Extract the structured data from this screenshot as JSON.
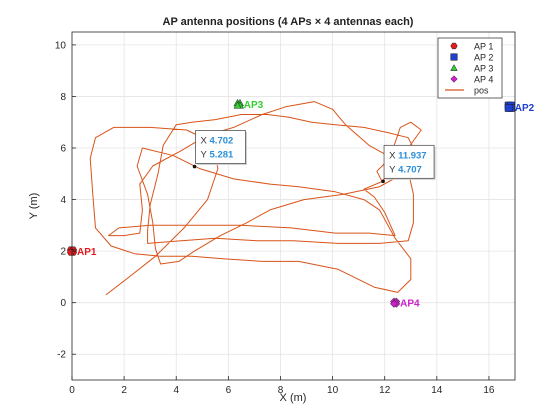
{
  "chart_data": {
    "type": "scatter",
    "title": "AP antenna positions (4 APs × 4 antennas each)",
    "xlabel": "X (m)",
    "ylabel": "Y (m)",
    "xlim": [
      0,
      17
    ],
    "ylim": [
      -3,
      10.5
    ],
    "xticks": [
      "0",
      "2",
      "4",
      "6",
      "8",
      "10",
      "12",
      "14",
      "16"
    ],
    "yticks": [
      "-2",
      "0",
      "2",
      "4",
      "6",
      "8",
      "10"
    ],
    "grid": true,
    "legend_position": "top-right",
    "legend": [
      {
        "label": "AP 1",
        "marker": "hexagon",
        "color": "#e41a1c"
      },
      {
        "label": "AP 2",
        "marker": "square",
        "color": "#1f3fd0"
      },
      {
        "label": "AP 3",
        "marker": "triangle",
        "color": "#33cc33"
      },
      {
        "label": "AP 4",
        "marker": "diamond",
        "color": "#cc22cc"
      },
      {
        "label": "pos",
        "marker": "line",
        "color": "#d95319"
      }
    ],
    "aps": [
      {
        "label": "AP1",
        "x": 0.0,
        "y": 2.0,
        "color": "#e41a1c",
        "marker": "hexagon"
      },
      {
        "label": "AP2",
        "x": 16.8,
        "y": 7.6,
        "color": "#1f3fd0",
        "marker": "square"
      },
      {
        "label": "AP3",
        "x": 6.4,
        "y": 7.7,
        "color": "#33cc33",
        "marker": "triangle"
      },
      {
        "label": "AP4",
        "x": 12.4,
        "y": 0.0,
        "color": "#cc22cc",
        "marker": "diamond"
      }
    ],
    "path": {
      "color": "#d95319",
      "points": [
        [
          1.3,
          0.3
        ],
        [
          2.2,
          1.0
        ],
        [
          3.2,
          1.8
        ],
        [
          4.3,
          2.9
        ],
        [
          5.2,
          4.0
        ],
        [
          5.6,
          5.2
        ],
        [
          5.4,
          6.2
        ],
        [
          4.4,
          6.7
        ],
        [
          3.0,
          6.8
        ],
        [
          1.6,
          6.8
        ],
        [
          0.9,
          6.4
        ],
        [
          0.7,
          5.6
        ],
        [
          0.8,
          4.2
        ],
        [
          0.9,
          2.9
        ],
        [
          1.5,
          2.2
        ],
        [
          2.4,
          1.9
        ],
        [
          3.4,
          1.8
        ],
        [
          4.6,
          1.8
        ],
        [
          5.8,
          1.7
        ],
        [
          7.3,
          1.6
        ],
        [
          8.7,
          1.6
        ],
        [
          10.2,
          1.3
        ],
        [
          11.6,
          0.6
        ],
        [
          12.5,
          0.4
        ],
        [
          13.0,
          0.9
        ],
        [
          13.0,
          1.7
        ],
        [
          12.4,
          2.5
        ],
        [
          11.8,
          3.6
        ],
        [
          11.2,
          4.0
        ],
        [
          10.1,
          4.3
        ],
        [
          8.7,
          4.5
        ],
        [
          7.6,
          4.6
        ],
        [
          6.2,
          4.8
        ],
        [
          4.9,
          5.2
        ],
        [
          3.9,
          5.7
        ],
        [
          2.7,
          6.0
        ],
        [
          2.5,
          5.3
        ],
        [
          2.9,
          4.2
        ],
        [
          3.1,
          3.1
        ],
        [
          3.2,
          2.1
        ],
        [
          3.4,
          1.5
        ],
        [
          4.1,
          1.6
        ],
        [
          4.7,
          2.0
        ],
        [
          5.7,
          2.6
        ],
        [
          6.7,
          3.1
        ],
        [
          7.6,
          3.6
        ],
        [
          8.9,
          4.0
        ],
        [
          10.4,
          4.2
        ],
        [
          11.8,
          4.5
        ],
        [
          12.7,
          5.0
        ],
        [
          13.2,
          5.8
        ],
        [
          12.9,
          6.4
        ],
        [
          12.1,
          6.6
        ],
        [
          11.2,
          6.8
        ],
        [
          10.1,
          6.9
        ],
        [
          9.2,
          7.0
        ],
        [
          8.3,
          7.2
        ],
        [
          7.5,
          7.3
        ],
        [
          6.5,
          7.3
        ],
        [
          5.5,
          7.1
        ],
        [
          4.6,
          7.0
        ],
        [
          4.0,
          6.9
        ],
        [
          3.5,
          6.1
        ],
        [
          3.3,
          5.0
        ],
        [
          3.0,
          3.8
        ],
        [
          2.9,
          2.8
        ],
        [
          2.9,
          2.3
        ],
        [
          4.2,
          2.4
        ],
        [
          5.5,
          2.5
        ],
        [
          7.1,
          2.4
        ],
        [
          8.5,
          2.4
        ],
        [
          10.2,
          2.3
        ],
        [
          11.8,
          2.3
        ],
        [
          12.9,
          2.4
        ],
        [
          13.1,
          3.1
        ],
        [
          13.1,
          4.2
        ],
        [
          12.9,
          5.1
        ],
        [
          12.3,
          5.6
        ],
        [
          11.4,
          6.1
        ],
        [
          10.5,
          6.9
        ],
        [
          10.0,
          7.5
        ],
        [
          9.3,
          7.8
        ],
        [
          8.2,
          7.6
        ],
        [
          7.3,
          7.3
        ],
        [
          6.2,
          6.8
        ],
        [
          5.2,
          6.5
        ],
        [
          4.2,
          5.9
        ],
        [
          3.1,
          5.3
        ],
        [
          2.6,
          4.6
        ],
        [
          2.7,
          3.6
        ],
        [
          2.6,
          2.7
        ],
        [
          2.0,
          2.6
        ],
        [
          1.4,
          2.6
        ],
        [
          1.8,
          2.9
        ],
        [
          3.0,
          3.0
        ],
        [
          4.6,
          3.0
        ],
        [
          6.5,
          3.0
        ],
        [
          8.4,
          2.9
        ],
        [
          10.1,
          2.7
        ],
        [
          11.4,
          2.7
        ],
        [
          12.4,
          2.6
        ],
        [
          12.0,
          3.5
        ],
        [
          11.6,
          4.1
        ],
        [
          11.2,
          4.4
        ],
        [
          11.9,
          4.7
        ],
        [
          12.4,
          5.3
        ],
        [
          12.9,
          6.0
        ],
        [
          13.4,
          6.7
        ],
        [
          13.0,
          7.0
        ],
        [
          12.6,
          6.8
        ],
        [
          12.4,
          6.2
        ],
        [
          12.1,
          5.5
        ],
        [
          11.7,
          5.1
        ],
        [
          11.9,
          4.7
        ]
      ]
    },
    "datatips": [
      {
        "x_label": "X",
        "x_value": "4.702",
        "y_label": "Y",
        "y_value": "5.281",
        "x": 4.702,
        "y": 5.281
      },
      {
        "x_label": "X",
        "x_value": "11.937",
        "y_label": "Y",
        "y_value": "4.707",
        "x": 11.937,
        "y": 4.707
      }
    ]
  }
}
